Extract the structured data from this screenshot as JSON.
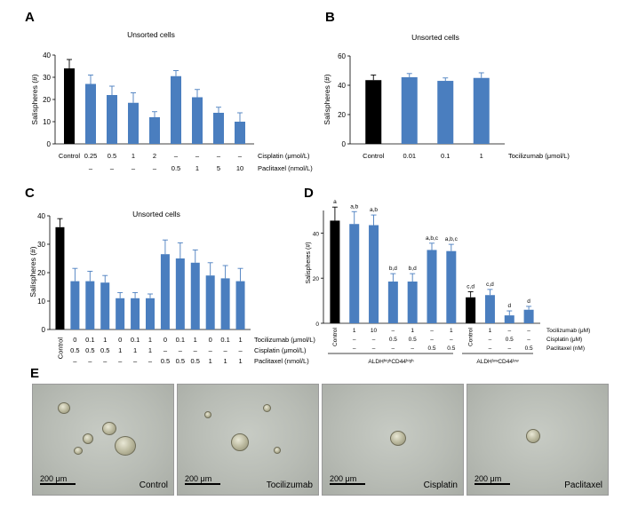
{
  "panels": {
    "A": {
      "letter": "A",
      "title": "Unsorted cells",
      "ylabel": "Salispheres (#)",
      "yticks": [
        "0",
        "10",
        "20",
        "30",
        "40"
      ],
      "ylim": [
        0,
        40
      ],
      "row_labels": [
        "Cisplatin (μmol/L)",
        "Paclitaxel (nmol/L)"
      ],
      "row_values": [
        [
          "Control",
          "0.25",
          "0.5",
          "1",
          "2",
          "–",
          "–",
          "–",
          "–"
        ],
        [
          "",
          "–",
          "–",
          "–",
          "–",
          "0.5",
          "1",
          "5",
          "10"
        ]
      ]
    },
    "B": {
      "letter": "B",
      "title": "Unsorted cells",
      "ylabel": "Salispheres (#)",
      "yticks": [
        "0",
        "20",
        "40",
        "60"
      ],
      "ylim": [
        0,
        60
      ],
      "row_labels": [
        "Tocilizumab (μmol/L)"
      ],
      "row_values": [
        [
          "Control",
          "0.01",
          "0.1",
          "1"
        ]
      ]
    },
    "C": {
      "letter": "C",
      "title": "Unsorted cells",
      "ylabel": "Salispheres (#)",
      "yticks": [
        "0",
        "10",
        "20",
        "30",
        "40"
      ],
      "ylim": [
        0,
        40
      ],
      "control_label": "Control",
      "row_labels": [
        "Tocilizumab (μmol/L)",
        "Cisplatin (μmol/L)",
        "Paclitaxel (nmol/L)"
      ],
      "row_values": [
        [
          "0",
          "0.1",
          "1",
          "0",
          "0.1",
          "1",
          "0",
          "0.1",
          "1",
          "0",
          "0.1",
          "1"
        ],
        [
          "0.5",
          "0.5",
          "0.5",
          "1",
          "1",
          "1",
          "–",
          "–",
          "–",
          "–",
          "–",
          "–"
        ],
        [
          "–",
          "–",
          "–",
          "–",
          "–",
          "–",
          "0.5",
          "0.5",
          "0.5",
          "1",
          "1",
          "1"
        ]
      ]
    },
    "D": {
      "letter": "D",
      "ylabel": "Salispheres (#)",
      "yticks": [
        "0",
        "20",
        "40"
      ],
      "ylim": [
        0,
        50
      ],
      "control_labels": [
        "Control",
        "Control"
      ],
      "row_labels": [
        "Tocilizumab (μM)",
        "Cisplatin (μM)",
        "Paclitaxel (nM)"
      ],
      "row_values": [
        [
          "1",
          "10",
          "–",
          "1",
          "–",
          "1",
          "1",
          "–",
          "–"
        ],
        [
          "–",
          "–",
          "0.5",
          "0.5",
          "–",
          "–",
          "–",
          "0.5",
          "–"
        ],
        [
          "–",
          "–",
          "–",
          "–",
          "0.5",
          "0.5",
          "–",
          "–",
          "0.5"
        ]
      ],
      "sig_letters": [
        "a",
        "a,b",
        "a,b",
        "b,d",
        "b,d",
        "a,b,c",
        "a,b,c",
        "c,d",
        "c,d",
        "d",
        "d"
      ],
      "group1_label": "ALDHʰⁱᵍʰCD44ʰⁱᵍʰ",
      "group2_label": "ALDHˡᵒʷCD44ˡᵒʷ"
    },
    "E": {
      "letter": "E",
      "scale_label": "200 μm",
      "images": [
        "Control",
        "Tocilizumab",
        "Cisplatin",
        "Paclitaxel"
      ]
    }
  },
  "colors": {
    "control": "#000000",
    "treatment": "#4a7ebf",
    "error": "#4a7ebf"
  },
  "chart_data": [
    {
      "type": "bar",
      "panel": "A",
      "title": "Unsorted cells",
      "ylabel": "Salispheres (#)",
      "ylim": [
        0,
        40
      ],
      "categories": [
        "Control",
        "Cisplatin 0.25",
        "Cisplatin 0.5",
        "Cisplatin 1",
        "Cisplatin 2",
        "Paclitaxel 0.5",
        "Paclitaxel 1",
        "Paclitaxel 5",
        "Paclitaxel 10"
      ],
      "values": [
        34,
        27,
        22,
        18.5,
        12,
        30.5,
        21,
        14,
        10
      ],
      "errors": [
        4,
        4,
        4,
        4.5,
        2.5,
        2.5,
        3.5,
        2.5,
        4
      ]
    },
    {
      "type": "bar",
      "panel": "B",
      "title": "Unsorted cells",
      "ylabel": "Salispheres (#)",
      "ylim": [
        0,
        60
      ],
      "categories": [
        "Control",
        "0.01",
        "0.1",
        "1"
      ],
      "values": [
        43.5,
        45.5,
        43,
        45
      ],
      "errors": [
        3.5,
        2.5,
        2,
        3.5
      ]
    },
    {
      "type": "bar",
      "panel": "C",
      "title": "Unsorted cells",
      "ylabel": "Salispheres (#)",
      "ylim": [
        0,
        40
      ],
      "values": [
        36,
        17,
        17,
        16.5,
        11,
        11,
        11,
        26.5,
        25,
        23.5,
        19,
        18,
        17
      ],
      "errors": [
        3,
        4.5,
        3.5,
        2.5,
        2,
        2,
        1.5,
        5,
        5.5,
        4.5,
        4.5,
        4.5,
        4.5
      ]
    },
    {
      "type": "bar",
      "panel": "D",
      "ylabel": "Salispheres (#)",
      "ylim": [
        0,
        50
      ],
      "values": [
        45.5,
        44,
        43.5,
        18.5,
        18.5,
        32.5,
        32,
        11.5,
        12.5,
        3.5,
        6
      ],
      "errors": [
        6,
        5.5,
        4.5,
        3.5,
        3.5,
        3,
        3,
        2.5,
        2.5,
        2,
        1.5
      ],
      "control_indices": [
        0,
        7
      ]
    }
  ]
}
